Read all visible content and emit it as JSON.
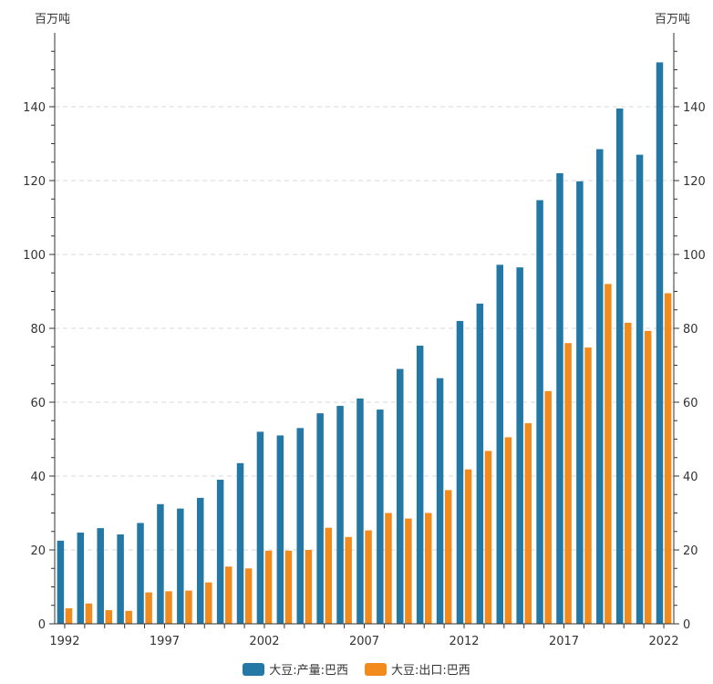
{
  "chart_data": {
    "type": "bar",
    "y_unit_left": "百万吨",
    "y_unit_right": "百万吨",
    "x": [
      1992,
      1993,
      1994,
      1995,
      1996,
      1997,
      1998,
      1999,
      2000,
      2001,
      2002,
      2003,
      2004,
      2005,
      2006,
      2007,
      2008,
      2009,
      2010,
      2011,
      2012,
      2013,
      2014,
      2015,
      2016,
      2017,
      2018,
      2019,
      2020,
      2021,
      2022
    ],
    "x_tick_labels": [
      "1992",
      "1997",
      "2002",
      "2007",
      "2012",
      "2017",
      "2022"
    ],
    "ylim": [
      0,
      160
    ],
    "yticks": [
      0,
      20,
      40,
      60,
      80,
      100,
      120,
      140
    ],
    "grid": true,
    "legend_position": "bottom",
    "series": [
      {
        "name": "大豆:产量:巴西",
        "color": "#2378a6",
        "values": [
          22.5,
          24.7,
          25.9,
          24.2,
          27.3,
          32.4,
          31.2,
          34.1,
          39.0,
          43.5,
          52.0,
          51.0,
          53.0,
          57.0,
          59.0,
          61.0,
          58.0,
          69.0,
          75.3,
          66.5,
          82.0,
          86.7,
          97.2,
          96.5,
          114.7,
          122.0,
          119.8,
          128.5,
          139.5,
          127.0,
          152.0
        ]
      },
      {
        "name": "大豆:出口:巴西",
        "color": "#f28a1c",
        "values": [
          4.2,
          5.5,
          3.7,
          3.5,
          8.5,
          8.8,
          9.0,
          11.2,
          15.5,
          15.0,
          19.8,
          19.8,
          20.0,
          26.0,
          23.5,
          25.3,
          30.0,
          28.5,
          30.0,
          36.2,
          41.8,
          46.8,
          50.5,
          54.3,
          63.0,
          76.0,
          74.8,
          92.0,
          81.5,
          79.3,
          89.5
        ]
      }
    ]
  }
}
